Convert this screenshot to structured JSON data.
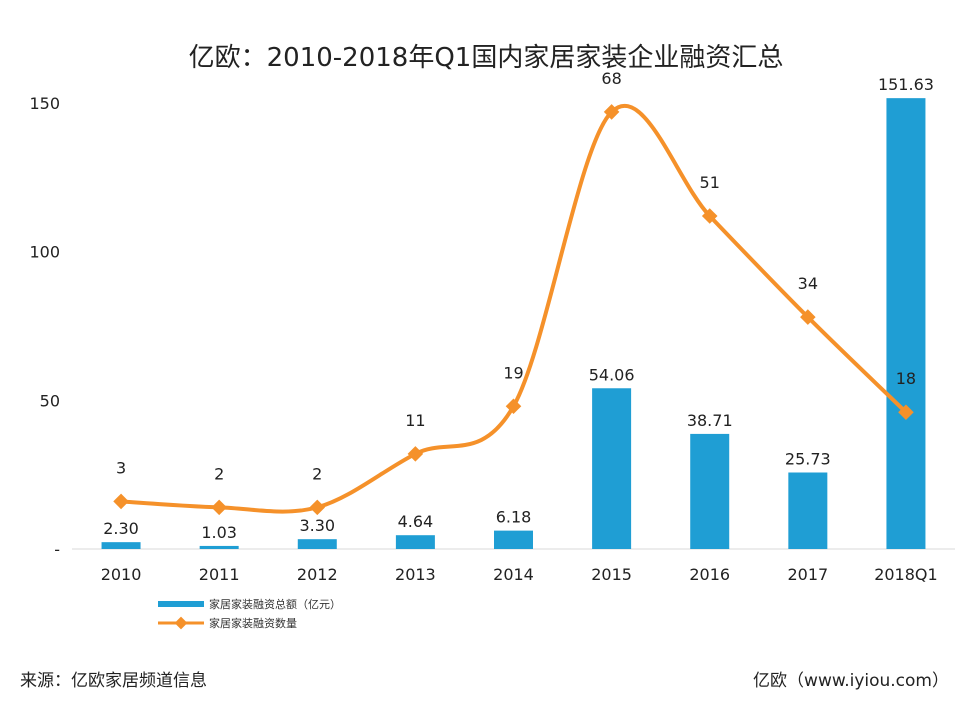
{
  "chart_data": {
    "type": "bar+line",
    "title": "亿欧：2010-2018年Q1国内家居家装企业融资汇总",
    "categories": [
      "2010",
      "2011",
      "2012",
      "2013",
      "2014",
      "2015",
      "2016",
      "2017",
      "2018Q1"
    ],
    "series": [
      {
        "name": "家居家装融资总额（亿元）",
        "type": "bar",
        "color": "#1f9ed4",
        "values": [
          2.3,
          1.03,
          3.3,
          4.64,
          6.18,
          54.06,
          38.71,
          25.73,
          151.63
        ],
        "labels": [
          "2.30",
          "1.03",
          "3.30",
          "4.64",
          "6.18",
          "54.06",
          "38.71",
          "25.73",
          "151.63"
        ]
      },
      {
        "name": "家居家装融资数量",
        "type": "line",
        "color": "#f5912a",
        "values": [
          3,
          2,
          2,
          11,
          19,
          68,
          51,
          34,
          18
        ],
        "labels": [
          "3",
          "2",
          "2",
          "11",
          "19",
          "68",
          "51",
          "34",
          "18"
        ],
        "plotted_values": [
          16,
          14,
          14,
          32,
          48,
          147,
          112,
          78,
          46
        ]
      }
    ],
    "y_ticks": [
      "150",
      "100",
      "50",
      "-"
    ],
    "y_tick_values": [
      150,
      100,
      50,
      0
    ],
    "ylim": [
      0,
      150
    ],
    "legend_position": "bottom-left"
  },
  "footer": {
    "source": "来源：亿欧家居频道信息",
    "brand": "亿欧（www.iyiou.com）"
  }
}
